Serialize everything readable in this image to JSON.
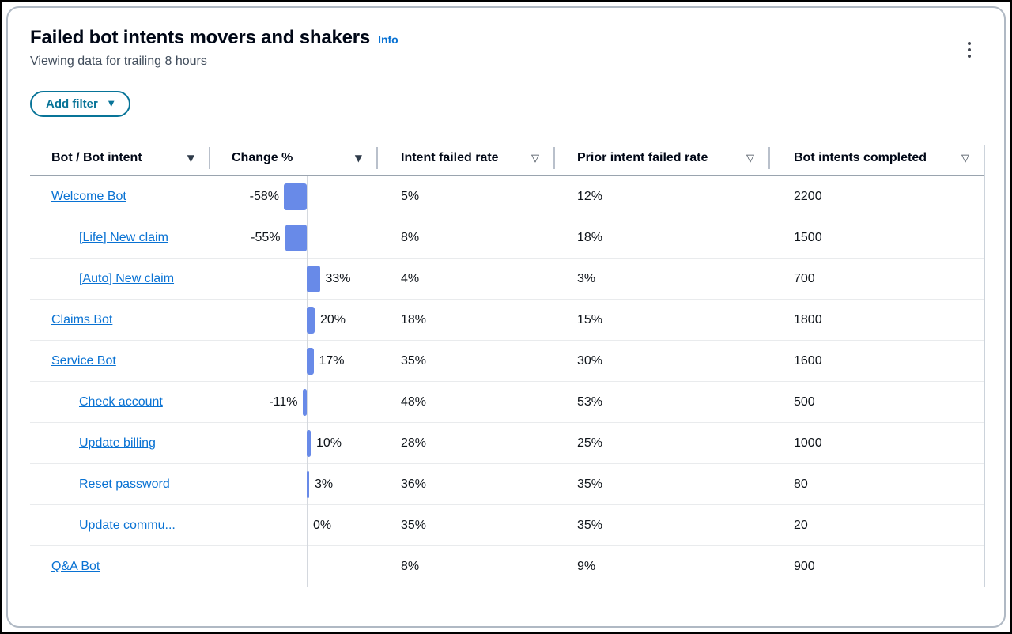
{
  "widget": {
    "title": "Failed bot intents movers and shakers",
    "info_link": "Info",
    "subtitle": "Viewing data for trailing 8 hours",
    "add_filter_button": "Add filter"
  },
  "icons": {
    "kebab_menu": "vertical-ellipsis",
    "caret_down": "▼",
    "sort_triangle_filled": "▼",
    "sort_triangle_outline": "▽"
  },
  "colors": {
    "link": "#0972d3",
    "filter_accent": "#087498",
    "bar_fill": "#688ae8",
    "heading_text": "#000716",
    "subtitle_text": "#414d5c"
  },
  "table": {
    "columns": [
      {
        "label": "Bot / Bot intent",
        "sort": "filled"
      },
      {
        "label": "Change %",
        "sort": "filled"
      },
      {
        "label": "Intent failed rate",
        "sort": "outline"
      },
      {
        "label": "Prior intent failed rate",
        "sort": "outline"
      },
      {
        "label": "Bot intents completed",
        "sort": "outline"
      }
    ],
    "rows": [
      {
        "label": "Welcome Bot",
        "level": "bot",
        "change_pct": -58,
        "change_label": "-58%",
        "intent_failed_rate": "5%",
        "prior_intent_failed_rate": "12%",
        "bot_intents_completed": "2200"
      },
      {
        "label": "[Life] New claim",
        "level": "intent",
        "change_pct": -55,
        "change_label": "-55%",
        "intent_failed_rate": "8%",
        "prior_intent_failed_rate": "18%",
        "bot_intents_completed": "1500"
      },
      {
        "label": "[Auto] New claim",
        "level": "intent",
        "change_pct": 33,
        "change_label": "33%",
        "intent_failed_rate": "4%",
        "prior_intent_failed_rate": "3%",
        "bot_intents_completed": "700"
      },
      {
        "label": "Claims Bot",
        "level": "bot",
        "change_pct": 20,
        "change_label": "20%",
        "intent_failed_rate": "18%",
        "prior_intent_failed_rate": "15%",
        "bot_intents_completed": "1800"
      },
      {
        "label": "Service Bot",
        "level": "bot",
        "change_pct": 17,
        "change_label": "17%",
        "intent_failed_rate": "35%",
        "prior_intent_failed_rate": "30%",
        "bot_intents_completed": "1600"
      },
      {
        "label": "Check account",
        "level": "intent",
        "change_pct": -11,
        "change_label": "-11%",
        "intent_failed_rate": "48%",
        "prior_intent_failed_rate": "53%",
        "bot_intents_completed": "500"
      },
      {
        "label": "Update billing",
        "level": "intent",
        "change_pct": 10,
        "change_label": "10%",
        "intent_failed_rate": "28%",
        "prior_intent_failed_rate": "25%",
        "bot_intents_completed": "1000"
      },
      {
        "label": "Reset password",
        "level": "intent",
        "change_pct": 3,
        "change_label": "3%",
        "intent_failed_rate": "36%",
        "prior_intent_failed_rate": "35%",
        "bot_intents_completed": "80"
      },
      {
        "label": "Update commu...",
        "level": "intent",
        "change_pct": 0,
        "change_label": "0%",
        "intent_failed_rate": "35%",
        "prior_intent_failed_rate": "35%",
        "bot_intents_completed": "20"
      },
      {
        "label": "Q&A Bot",
        "level": "bot",
        "change_pct": null,
        "change_label": "",
        "intent_failed_rate": "8%",
        "prior_intent_failed_rate": "9%",
        "bot_intents_completed": "900"
      }
    ]
  }
}
